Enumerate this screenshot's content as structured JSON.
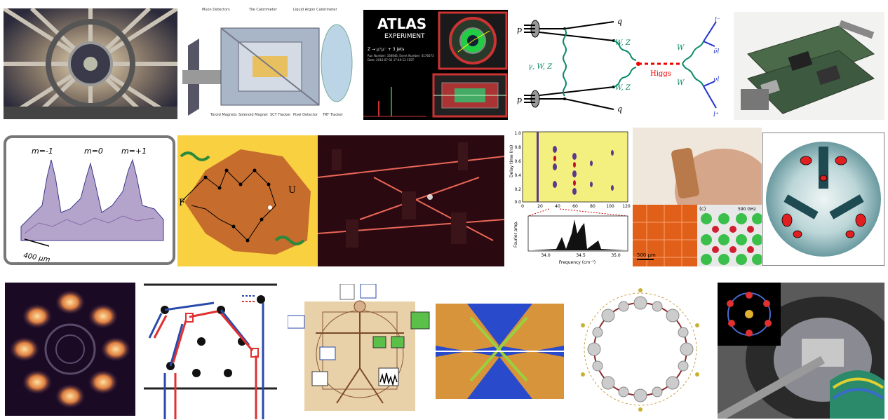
{
  "atlas": {
    "title": "ATLAS",
    "subtitle": "EXPERIMENT",
    "process": "Z → μ⁺μ⁻ + 3 jets",
    "run": "Run Number: 338846, Event Number: 4176073",
    "date": "Date: 2016-07-02 17:49:13 CEST"
  },
  "detector": {
    "muon": "Muon Detectors",
    "tile": "Tile Calorimeter",
    "lar": "Liquid Argon Calorimeter",
    "toroid": "Toroid Magnets",
    "solenoid": "Solenoid Magnet",
    "sct": "SCT Tracker",
    "pixel": "Pixel Detector",
    "trt": "TRT Tracker"
  },
  "feynman": {
    "p_top": "p",
    "p_bottom": "p",
    "q_top": "q",
    "q_bottom": "q",
    "gauge": "γ, W, Z",
    "wz_top": "W, Z",
    "wz_bottom": "W, Z",
    "higgs": "Higgs",
    "w_top": "W",
    "w_bottom": "W",
    "l_minus": "l⁻",
    "nu_bar": "ν̄l",
    "nu": "νl",
    "l_plus": "l⁺"
  },
  "bec": {
    "m_minus": "m=-1",
    "m_zero": "m=0",
    "m_plus": "m=+1",
    "scale": "400 μm"
  },
  "folding": {
    "f": "F",
    "u": "U"
  },
  "spectrum": {
    "ylabel_top": "Delay time (ns)",
    "yticks_top": [
      "1.0",
      "0.8",
      "0.6",
      "0.4",
      "0.2",
      "0.0"
    ],
    "xticks_top": [
      "0",
      "20",
      "40",
      "60",
      "80",
      "100",
      "120"
    ],
    "ylabel_bottom": "Fourier amp.",
    "xticks_bottom": [
      "34.0",
      "34.5",
      "35.0"
    ],
    "xlabel_bottom": "Frequency (cm⁻¹)"
  },
  "metamaterial": {
    "scale": "500 μm",
    "panel": "(c)",
    "freq": "590 GHz"
  }
}
